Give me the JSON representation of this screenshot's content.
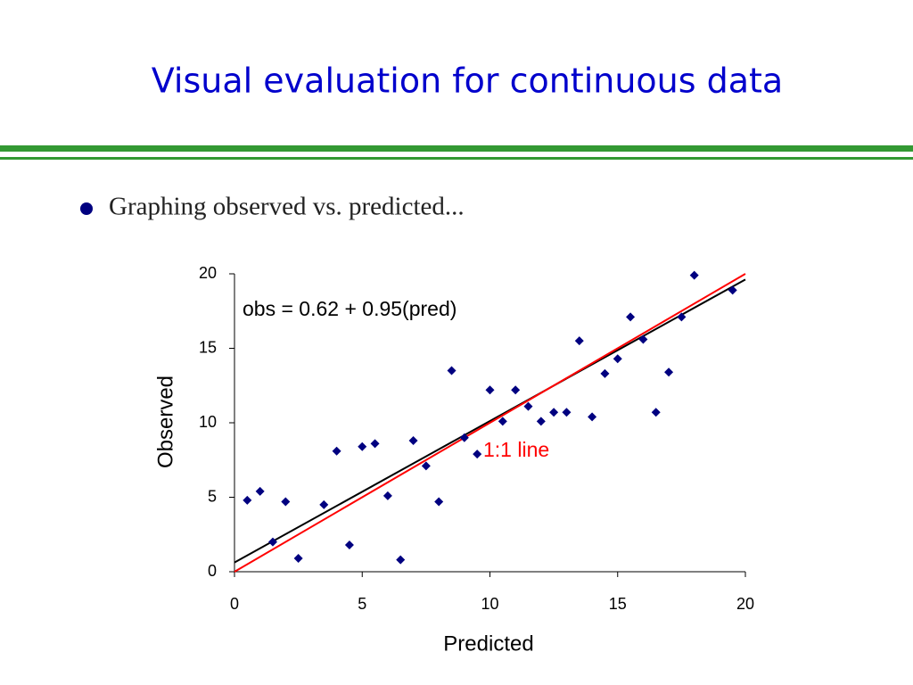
{
  "header": {
    "title": "Visual evaluation for continuous data"
  },
  "bullets": [
    "Graphing observed vs. predicted..."
  ],
  "chart_data": {
    "type": "scatter",
    "x_label": "Predicted",
    "y_label": "Observed",
    "xlim": [
      0,
      20
    ],
    "xticks": [
      0,
      5,
      10,
      15,
      20
    ],
    "ylim": [
      0,
      20
    ],
    "yticks": [
      0,
      5,
      10,
      15,
      20
    ],
    "grid": false,
    "marker_color": "#000080",
    "x": [
      0.5,
      1.0,
      1.5,
      2.0,
      2.5,
      3.5,
      4.0,
      4.5,
      5.0,
      5.5,
      6.0,
      6.5,
      7.0,
      7.5,
      8.0,
      8.5,
      9.0,
      9.5,
      10.0,
      10.5,
      11.0,
      11.5,
      12.0,
      12.5,
      13.0,
      13.5,
      14.0,
      14.5,
      15.0,
      15.5,
      16.0,
      16.5,
      17.0,
      17.5,
      18.0,
      19.5
    ],
    "y": [
      4.8,
      5.4,
      2.0,
      4.7,
      0.9,
      4.5,
      8.1,
      1.8,
      8.4,
      8.6,
      5.1,
      0.8,
      8.8,
      7.1,
      4.7,
      13.5,
      9.0,
      7.9,
      12.2,
      10.1,
      12.2,
      11.1,
      10.1,
      10.7,
      10.7,
      15.5,
      10.4,
      13.3,
      14.3,
      17.1,
      15.6,
      10.7,
      13.4,
      17.1,
      19.9,
      18.9
    ],
    "lines": [
      {
        "intercept": 0.62,
        "slope": 0.95,
        "color": "#000000",
        "label": "obs = 0.62 + 0.95(pred)"
      },
      {
        "intercept": 0,
        "slope": 1,
        "color": "#ff0000",
        "label": "1:1 line"
      }
    ]
  }
}
